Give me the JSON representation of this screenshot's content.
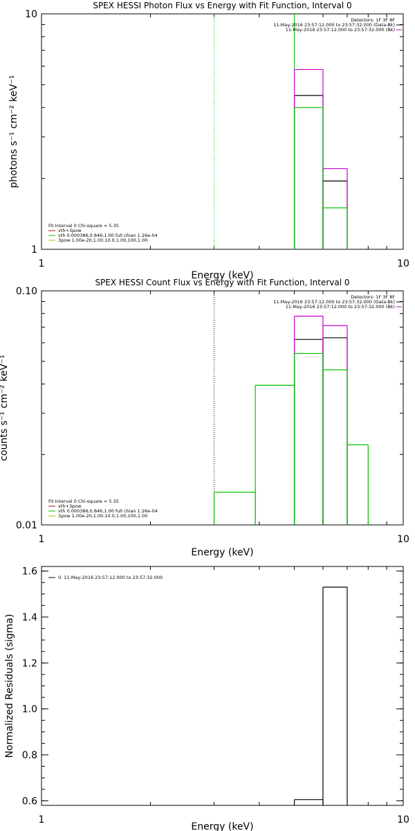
{
  "chart_data": [
    {
      "type": "line",
      "title": "SPEX HESSI Photon Flux vs Energy with Fit Function, Interval 0",
      "xlabel": "Energy (keV)",
      "ylabel": "photons s⁻¹ cm⁻² keV⁻¹",
      "xscale": "log",
      "yscale": "log",
      "xlim": [
        1,
        10
      ],
      "ylim": [
        1,
        10
      ],
      "xtick_labels": [
        "1",
        "10"
      ],
      "ytick_labels": [
        "1",
        "10"
      ],
      "grid": false,
      "vlines": [
        {
          "x": 3.0,
          "color": "#00c000",
          "style": "dotted"
        },
        {
          "x": 5.0,
          "color": "#00c000",
          "style": "solid"
        }
      ],
      "legend_top_right": {
        "header": "Detectors: 1F 3F 8F",
        "entries": [
          {
            "label": "11-May-2016 23:57:12.000 to 23:57:32.000 (Data-Bk)",
            "color": "#000000"
          },
          {
            "label": "11-May-2016 23:57:12.000 to 23:57:32.000 (Bk)",
            "color": "#cc00cc"
          }
        ]
      },
      "legend_bottom_left": {
        "header": "Fit Interval 0   Chi-square = 5.35",
        "entries": [
          {
            "label": "vth+3pow",
            "color": "#cc0000"
          },
          {
            "label": "vth 0.000386,0.846,1.00  full chian 1.26e-04",
            "color": "#00c000"
          },
          {
            "label": "3pow 1.00e-20,1.00,10.0,1.00,100,1.00",
            "color": "#c8b400"
          }
        ]
      },
      "series": [
        {
          "name": "(Data-Bk)",
          "color": "#000000",
          "bins": [
            [
              5.0,
              6.0,
              4.5
            ],
            [
              6.0,
              7.0,
              1.95
            ]
          ]
        },
        {
          "name": "(Bk)",
          "color": "#cc00cc",
          "bins": [
            [
              5.0,
              6.0,
              5.8
            ],
            [
              6.0,
              7.0,
              2.2
            ]
          ]
        },
        {
          "name": "vth",
          "color": "#00c000",
          "bins": [
            [
              5.0,
              6.0,
              4.0
            ],
            [
              6.0,
              7.0,
              1.5
            ]
          ]
        }
      ]
    },
    {
      "type": "line",
      "title": "SPEX HESSI Count Flux vs Energy with Fit Function, Interval 0",
      "xlabel": "Energy (keV)",
      "ylabel": "counts s⁻¹ cm⁻² keV⁻¹",
      "xscale": "log",
      "yscale": "log",
      "xlim": [
        1,
        10
      ],
      "ylim": [
        0.01,
        0.1
      ],
      "xtick_labels": [
        "1",
        "10"
      ],
      "ytick_labels": [
        "0.01",
        "0.10"
      ],
      "grid": false,
      "vlines": [
        {
          "x": 3.0,
          "color": "#000000",
          "style": "dotted"
        }
      ],
      "legend_top_right": {
        "header": "Detectors: 1F 3F 8F",
        "entries": [
          {
            "label": "11-May-2016 23:57:12.000 to 23:57:32.000 (Data-Bk)",
            "color": "#000000"
          },
          {
            "label": "11-May-2016 23:57:12.000 to 23:57:32.000 (Bk)",
            "color": "#cc00cc"
          }
        ]
      },
      "legend_bottom_left": {
        "header": "Fit Interval 0   Chi-square = 5.35",
        "entries": [
          {
            "label": "vth+3pow",
            "color": "#cc0000"
          },
          {
            "label": "vth 0.000386,0.846,1.00  full chian 1.26e-04",
            "color": "#00c000"
          },
          {
            "label": "3pow 1.00e-20,1.00,10.0,1.00,100,1.00",
            "color": "#c8b400"
          }
        ]
      },
      "series": [
        {
          "name": "(Data-Bk)",
          "color": "#000000",
          "bins": [
            [
              5.0,
              6.0,
              0.062
            ],
            [
              6.0,
              7.0,
              0.063
            ]
          ]
        },
        {
          "name": "(Bk)",
          "color": "#cc00cc",
          "bins": [
            [
              5.0,
              6.0,
              0.078
            ],
            [
              6.0,
              7.0,
              0.071
            ]
          ]
        },
        {
          "name": "vth",
          "color": "#00c000",
          "bins": [
            [
              3.0,
              3.9,
              0.0138
            ],
            [
              3.9,
              5.0,
              0.0395
            ],
            [
              5.0,
              6.0,
              0.054
            ],
            [
              6.0,
              7.0,
              0.046
            ],
            [
              7.0,
              8.0,
              0.022
            ]
          ]
        }
      ]
    },
    {
      "type": "line",
      "title": "",
      "xlabel": "Energy (keV)",
      "ylabel": "Normalized Residuals (sigma)",
      "xscale": "log",
      "yscale": "linear",
      "xlim": [
        1,
        10
      ],
      "ylim": [
        0.58,
        1.62
      ],
      "xtick_labels": [
        "1",
        "10"
      ],
      "yticks": [
        0.6,
        0.8,
        1.0,
        1.2,
        1.4,
        1.6
      ],
      "ytick_labels": [
        "0.6",
        "0.8",
        "1.0",
        "1.2",
        "1.4",
        "1.6"
      ],
      "grid": false,
      "vlines": [],
      "legend_top_left": {
        "entries": [
          {
            "label": "0. 11-May-2016 23:57:12.000 to 23:57:32.000",
            "color": "#000000"
          }
        ]
      },
      "series": [
        {
          "name": "0. 11-May-2016 23:57:12.000 to 23:57:32.000",
          "color": "#000000",
          "bins": [
            [
              5.0,
              6.0,
              0.605
            ],
            [
              6.0,
              7.0,
              1.53
            ]
          ]
        }
      ]
    }
  ]
}
